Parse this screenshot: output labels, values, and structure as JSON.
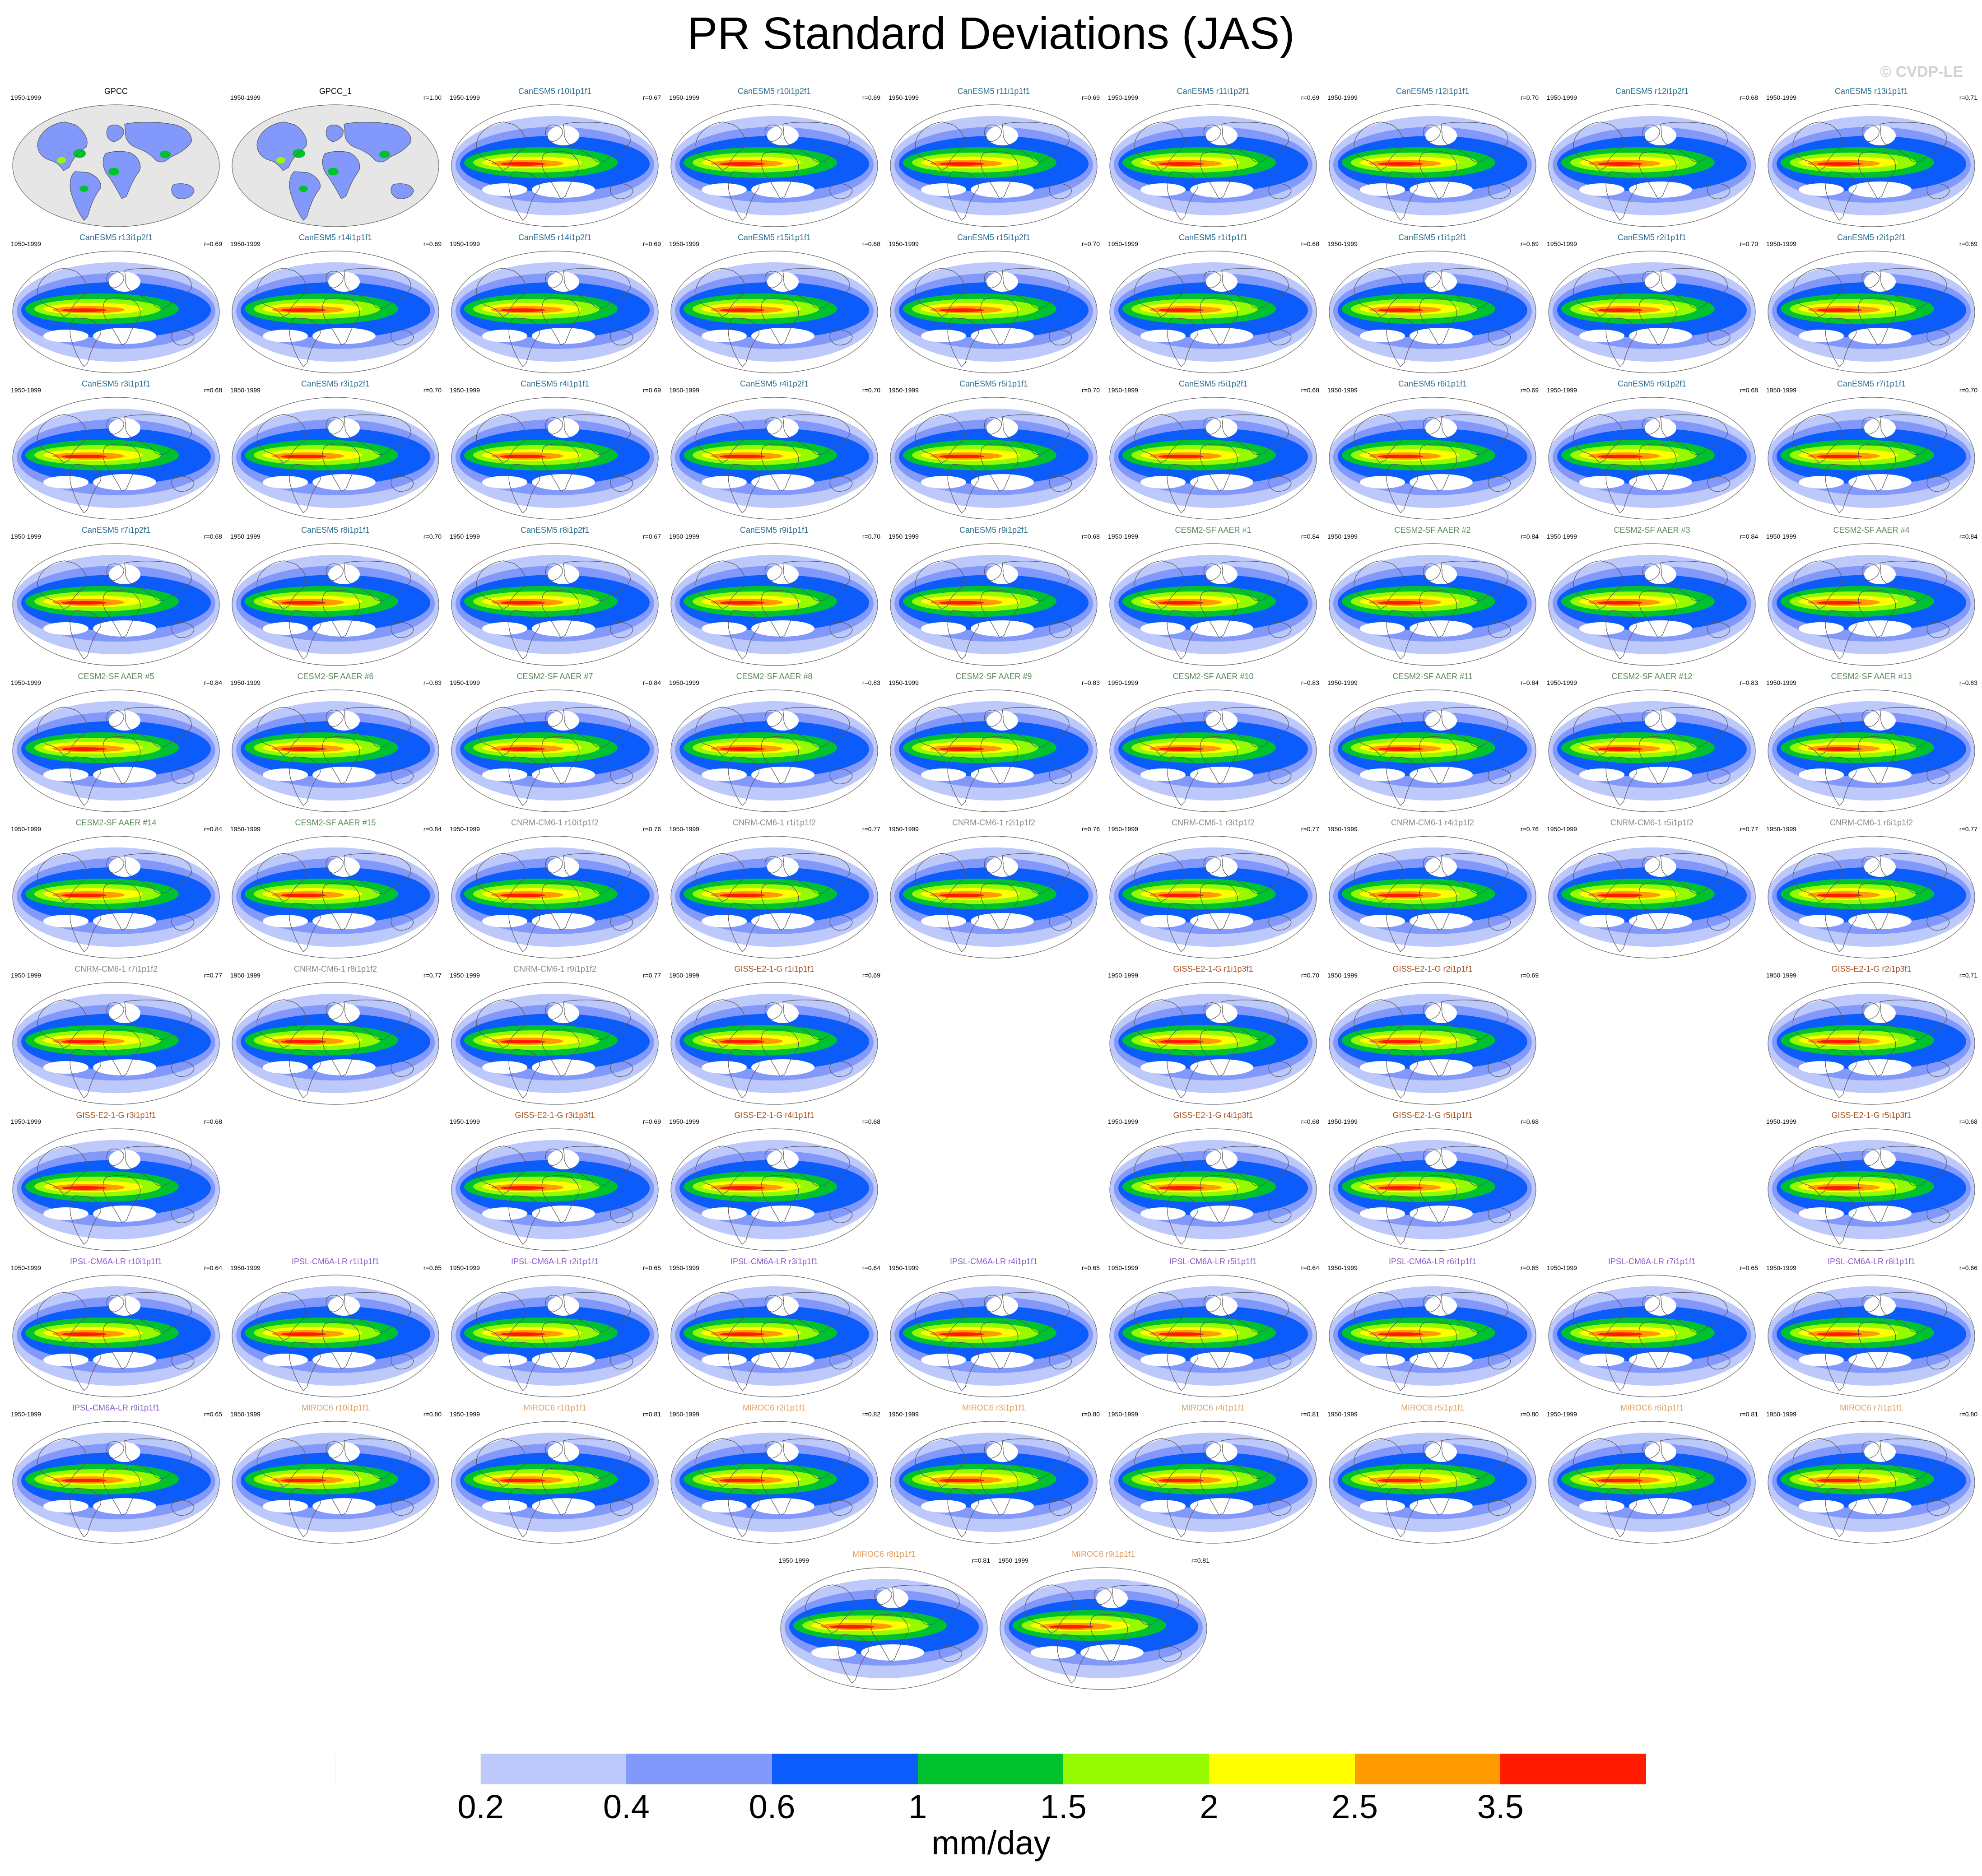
{
  "title": "PR Standard Deviations (JAS)",
  "watermark": "© CVDP-LE",
  "colors": {
    "ocean_obs": "#e6e6e6",
    "coast": "#555555",
    "group_colors": {
      "obs": "#000000",
      "CanESM5": "#2b6d8e",
      "CESM2-SF": "#5a8a5a",
      "CNRM-CM6-1": "#888888",
      "GISS-E2-1-G": "#a8501e",
      "IPSL-CM6A-LR": "#8a5cc8",
      "MIROC6": "#e0a060"
    }
  },
  "colorbar": {
    "colors": [
      "#ffffff",
      "#bdc8fb",
      "#8298fb",
      "#0b5cfb",
      "#00c22e",
      "#96fb00",
      "#ffff00",
      "#ff9a00",
      "#ff1a00"
    ],
    "labels": [
      "0.2",
      "0.4",
      "0.6",
      "1",
      "1.5",
      "2",
      "2.5",
      "3.5"
    ],
    "units": "mm/day"
  },
  "panels": [
    {
      "label": "GPCC",
      "period": "1950-1999",
      "r": "",
      "group": "obs"
    },
    {
      "label": "GPCC_1",
      "period": "1950-1999",
      "r": "r=1.00",
      "group": "obs"
    },
    {
      "label": "CanESM5 r10i1p1f1",
      "period": "1950-1999",
      "r": "r=0.67",
      "group": "CanESM5"
    },
    {
      "label": "CanESM5 r10i1p2f1",
      "period": "1950-1999",
      "r": "r=0.69",
      "group": "CanESM5"
    },
    {
      "label": "CanESM5 r11i1p1f1",
      "period": "1950-1999",
      "r": "r=0.69",
      "group": "CanESM5"
    },
    {
      "label": "CanESM5 r11i1p2f1",
      "period": "1950-1999",
      "r": "r=0.69",
      "group": "CanESM5"
    },
    {
      "label": "CanESM5 r12i1p1f1",
      "period": "1950-1999",
      "r": "r=0.70",
      "group": "CanESM5"
    },
    {
      "label": "CanESM5 r12i1p2f1",
      "period": "1950-1999",
      "r": "r=0.68",
      "group": "CanESM5"
    },
    {
      "label": "CanESM5 r13i1p1f1",
      "period": "1950-1999",
      "r": "r=0.71",
      "group": "CanESM5"
    },
    {
      "label": "CanESM5 r13i1p2f1",
      "period": "1950-1999",
      "r": "r=0.69",
      "group": "CanESM5"
    },
    {
      "label": "CanESM5 r14i1p1f1",
      "period": "1950-1999",
      "r": "r=0.69",
      "group": "CanESM5"
    },
    {
      "label": "CanESM5 r14i1p2f1",
      "period": "1950-1999",
      "r": "r=0.69",
      "group": "CanESM5"
    },
    {
      "label": "CanESM5 r15i1p1f1",
      "period": "1950-1999",
      "r": "r=0.68",
      "group": "CanESM5"
    },
    {
      "label": "CanESM5 r15i1p2f1",
      "period": "1950-1999",
      "r": "r=0.70",
      "group": "CanESM5"
    },
    {
      "label": "CanESM5 r1i1p1f1",
      "period": "1950-1999",
      "r": "r=0.68",
      "group": "CanESM5"
    },
    {
      "label": "CanESM5 r1i1p2f1",
      "period": "1950-1999",
      "r": "r=0.69",
      "group": "CanESM5"
    },
    {
      "label": "CanESM5 r2i1p1f1",
      "period": "1950-1999",
      "r": "r=0.70",
      "group": "CanESM5"
    },
    {
      "label": "CanESM5 r2i1p2f1",
      "period": "1950-1999",
      "r": "r=0.69",
      "group": "CanESM5"
    },
    {
      "label": "CanESM5 r3i1p1f1",
      "period": "1950-1999",
      "r": "r=0.68",
      "group": "CanESM5"
    },
    {
      "label": "CanESM5 r3i1p2f1",
      "period": "1950-1999",
      "r": "r=0.70",
      "group": "CanESM5"
    },
    {
      "label": "CanESM5 r4i1p1f1",
      "period": "1950-1999",
      "r": "r=0.69",
      "group": "CanESM5"
    },
    {
      "label": "CanESM5 r4i1p2f1",
      "period": "1950-1999",
      "r": "r=0.70",
      "group": "CanESM5"
    },
    {
      "label": "CanESM5 r5i1p1f1",
      "period": "1950-1999",
      "r": "r=0.70",
      "group": "CanESM5"
    },
    {
      "label": "CanESM5 r5i1p2f1",
      "period": "1950-1999",
      "r": "r=0.68",
      "group": "CanESM5"
    },
    {
      "label": "CanESM5 r6i1p1f1",
      "period": "1950-1999",
      "r": "r=0.69",
      "group": "CanESM5"
    },
    {
      "label": "CanESM5 r6i1p2f1",
      "period": "1950-1999",
      "r": "r=0.68",
      "group": "CanESM5"
    },
    {
      "label": "CanESM5 r7i1p1f1",
      "period": "1950-1999",
      "r": "r=0.70",
      "group": "CanESM5"
    },
    {
      "label": "CanESM5 r7i1p2f1",
      "period": "1950-1999",
      "r": "r=0.68",
      "group": "CanESM5"
    },
    {
      "label": "CanESM5 r8i1p1f1",
      "period": "1950-1999",
      "r": "r=0.70",
      "group": "CanESM5"
    },
    {
      "label": "CanESM5 r8i1p2f1",
      "period": "1950-1999",
      "r": "r=0.67",
      "group": "CanESM5"
    },
    {
      "label": "CanESM5 r9i1p1f1",
      "period": "1950-1999",
      "r": "r=0.70",
      "group": "CanESM5"
    },
    {
      "label": "CanESM5 r9i1p2f1",
      "period": "1950-1999",
      "r": "r=0.68",
      "group": "CanESM5"
    },
    {
      "label": "CESM2-SF AAER #1",
      "period": "1950-1999",
      "r": "r=0.84",
      "group": "CESM2-SF"
    },
    {
      "label": "CESM2-SF AAER #2",
      "period": "1950-1999",
      "r": "r=0.84",
      "group": "CESM2-SF"
    },
    {
      "label": "CESM2-SF AAER #3",
      "period": "1950-1999",
      "r": "r=0.84",
      "group": "CESM2-SF"
    },
    {
      "label": "CESM2-SF AAER #4",
      "period": "1950-1999",
      "r": "r=0.84",
      "group": "CESM2-SF"
    },
    {
      "label": "CESM2-SF AAER #5",
      "period": "1950-1999",
      "r": "r=0.84",
      "group": "CESM2-SF"
    },
    {
      "label": "CESM2-SF AAER #6",
      "period": "1950-1999",
      "r": "r=0.83",
      "group": "CESM2-SF"
    },
    {
      "label": "CESM2-SF AAER #7",
      "period": "1950-1999",
      "r": "r=0.84",
      "group": "CESM2-SF"
    },
    {
      "label": "CESM2-SF AAER #8",
      "period": "1950-1999",
      "r": "r=0.83",
      "group": "CESM2-SF"
    },
    {
      "label": "CESM2-SF AAER #9",
      "period": "1950-1999",
      "r": "r=0.83",
      "group": "CESM2-SF"
    },
    {
      "label": "CESM2-SF AAER #10",
      "period": "1950-1999",
      "r": "r=0.83",
      "group": "CESM2-SF"
    },
    {
      "label": "CESM2-SF AAER #11",
      "period": "1950-1999",
      "r": "r=0.84",
      "group": "CESM2-SF"
    },
    {
      "label": "CESM2-SF AAER #12",
      "period": "1950-1999",
      "r": "r=0.83",
      "group": "CESM2-SF"
    },
    {
      "label": "CESM2-SF AAER #13",
      "period": "1950-1999",
      "r": "r=0.83",
      "group": "CESM2-SF"
    },
    {
      "label": "CESM2-SF AAER #14",
      "period": "1950-1999",
      "r": "r=0.84",
      "group": "CESM2-SF"
    },
    {
      "label": "CESM2-SF AAER #15",
      "period": "1950-1999",
      "r": "r=0.84",
      "group": "CESM2-SF"
    },
    {
      "label": "CNRM-CM6-1 r10i1p1f2",
      "period": "1950-1999",
      "r": "r=0.76",
      "group": "CNRM-CM6-1"
    },
    {
      "label": "CNRM-CM6-1 r1i1p1f2",
      "period": "1950-1999",
      "r": "r=0.77",
      "group": "CNRM-CM6-1"
    },
    {
      "label": "CNRM-CM6-1 r2i1p1f2",
      "period": "1950-1999",
      "r": "r=0.76",
      "group": "CNRM-CM6-1"
    },
    {
      "label": "CNRM-CM6-1 r3i1p1f2",
      "period": "1950-1999",
      "r": "r=0.77",
      "group": "CNRM-CM6-1"
    },
    {
      "label": "CNRM-CM6-1 r4i1p1f2",
      "period": "1950-1999",
      "r": "r=0.76",
      "group": "CNRM-CM6-1"
    },
    {
      "label": "CNRM-CM6-1 r5i1p1f2",
      "period": "1950-1999",
      "r": "r=0.77",
      "group": "CNRM-CM6-1"
    },
    {
      "label": "CNRM-CM6-1 r6i1p1f2",
      "period": "1950-1999",
      "r": "r=0.77",
      "group": "CNRM-CM6-1"
    },
    {
      "label": "CNRM-CM6-1 r7i1p1f2",
      "period": "1950-1999",
      "r": "r=0.77",
      "group": "CNRM-CM6-1"
    },
    {
      "label": "CNRM-CM6-1 r8i1p1f2",
      "period": "1950-1999",
      "r": "r=0.77",
      "group": "CNRM-CM6-1"
    },
    {
      "label": "CNRM-CM6-1 r9i1p1f2",
      "period": "1950-1999",
      "r": "r=0.77",
      "group": "CNRM-CM6-1"
    },
    {
      "label": "GISS-E2-1-G r1i1p1f1",
      "period": "1950-1999",
      "r": "r=0.69",
      "group": "GISS-E2-1-G"
    },
    {
      "label": "GISS-E2-1-G r1i1p3f1",
      "period": "1950-1999",
      "r": "r=0.70",
      "group": "GISS-E2-1-G"
    },
    {
      "label": "GISS-E2-1-G r2i1p1f1",
      "period": "1950-1999",
      "r": "r=0.69",
      "group": "GISS-E2-1-G"
    },
    {
      "label": "GISS-E2-1-G r2i1p3f1",
      "period": "1950-1999",
      "r": "r=0.71",
      "group": "GISS-E2-1-G"
    },
    {
      "label": "GISS-E2-1-G r3i1p1f1",
      "period": "1950-1999",
      "r": "r=0.68",
      "group": "GISS-E2-1-G"
    },
    {
      "label": "GISS-E2-1-G r3i1p3f1",
      "period": "1950-1999",
      "r": "r=0.69",
      "group": "GISS-E2-1-G"
    },
    {
      "label": "GISS-E2-1-G r4i1p1f1",
      "period": "1950-1999",
      "r": "r=0.68",
      "group": "GISS-E2-1-G"
    },
    {
      "label": "GISS-E2-1-G r4i1p3f1",
      "period": "1950-1999",
      "r": "r=0.68",
      "group": "GISS-E2-1-G"
    },
    {
      "label": "GISS-E2-1-G r5i1p1f1",
      "period": "1950-1999",
      "r": "r=0.68",
      "group": "GISS-E2-1-G"
    },
    {
      "label": "GISS-E2-1-G r5i1p3f1",
      "period": "1950-1999",
      "r": "r=0.68",
      "group": "GISS-E2-1-G"
    },
    {
      "label": "IPSL-CM6A-LR r10i1p1f1",
      "period": "1950-1999",
      "r": "r=0.64",
      "group": "IPSL-CM6A-LR"
    },
    {
      "label": "IPSL-CM6A-LR r1i1p1f1",
      "period": "1950-1999",
      "r": "r=0.65",
      "group": "IPSL-CM6A-LR"
    },
    {
      "label": "IPSL-CM6A-LR r2i1p1f1",
      "period": "1950-1999",
      "r": "r=0.65",
      "group": "IPSL-CM6A-LR"
    },
    {
      "label": "IPSL-CM6A-LR r3i1p1f1",
      "period": "1950-1999",
      "r": "r=0.64",
      "group": "IPSL-CM6A-LR"
    },
    {
      "label": "IPSL-CM6A-LR r4i1p1f1",
      "period": "1950-1999",
      "r": "r=0.65",
      "group": "IPSL-CM6A-LR"
    },
    {
      "label": "IPSL-CM6A-LR r5i1p1f1",
      "period": "1950-1999",
      "r": "r=0.64",
      "group": "IPSL-CM6A-LR"
    },
    {
      "label": "IPSL-CM6A-LR r6i1p1f1",
      "period": "1950-1999",
      "r": "r=0.65",
      "group": "IPSL-CM6A-LR"
    },
    {
      "label": "IPSL-CM6A-LR r7i1p1f1",
      "period": "1950-1999",
      "r": "r=0.65",
      "group": "IPSL-CM6A-LR"
    },
    {
      "label": "IPSL-CM6A-LR r8i1p1f1",
      "period": "1950-1999",
      "r": "r=0.66",
      "group": "IPSL-CM6A-LR"
    },
    {
      "label": "IPSL-CM6A-LR r9i1p1f1",
      "period": "1950-1999",
      "r": "r=0.65",
      "group": "IPSL-CM6A-LR"
    },
    {
      "label": "MIROC6 r10i1p1f1",
      "period": "1950-1999",
      "r": "r=0.80",
      "group": "MIROC6"
    },
    {
      "label": "MIROC6 r1i1p1f1",
      "period": "1950-1999",
      "r": "r=0.81",
      "group": "MIROC6"
    },
    {
      "label": "MIROC6 r2i1p1f1",
      "period": "1950-1999",
      "r": "r=0.82",
      "group": "MIROC6"
    },
    {
      "label": "MIROC6 r3i1p1f1",
      "period": "1950-1999",
      "r": "r=0.80",
      "group": "MIROC6"
    },
    {
      "label": "MIROC6 r4i1p1f1",
      "period": "1950-1999",
      "r": "r=0.81",
      "group": "MIROC6"
    },
    {
      "label": "MIROC6 r5i1p1f1",
      "period": "1950-1999",
      "r": "r=0.80",
      "group": "MIROC6"
    },
    {
      "label": "MIROC6 r6i1p1f1",
      "period": "1950-1999",
      "r": "r=0.81",
      "group": "MIROC6"
    },
    {
      "label": "MIROC6 r7i1p1f1",
      "period": "1950-1999",
      "r": "r=0.80",
      "group": "MIROC6"
    },
    {
      "label": "MIROC6 r8i1p1f1",
      "period": "1950-1999",
      "r": "r=0.81",
      "group": "MIROC6"
    },
    {
      "label": "MIROC6 r9i1p1f1",
      "period": "1950-1999",
      "r": "r=0.81",
      "group": "MIROC6"
    }
  ]
}
